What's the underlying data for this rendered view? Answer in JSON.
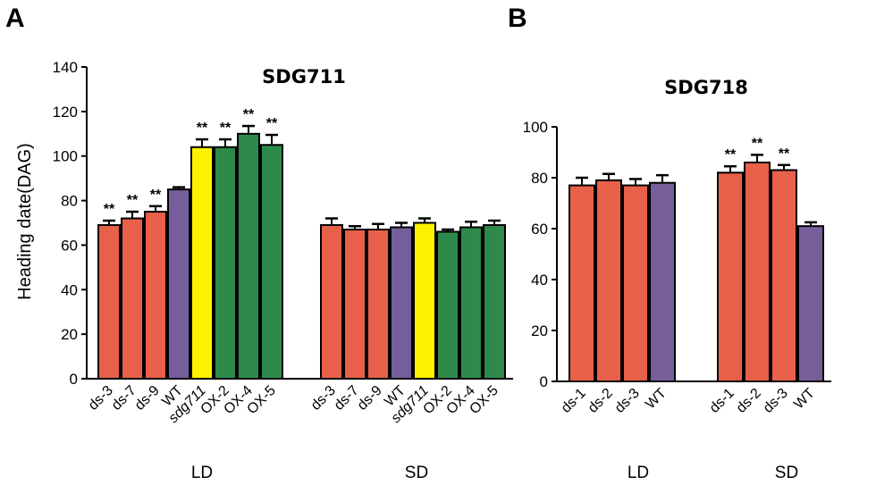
{
  "colors": {
    "ds": "#E8604A",
    "WT": "#765E9B",
    "sdg711": "#FFF200",
    "OX": "#2E8A4B",
    "outline": "#000000"
  },
  "chart_data": [
    {
      "panel": "A",
      "type": "bar",
      "title": "SDG711",
      "xlabel": "",
      "ylabel": "Heading date(DAG)",
      "ylim": [
        0,
        140
      ],
      "yticks": [
        0,
        20,
        40,
        60,
        80,
        100,
        120,
        140
      ],
      "groups": [
        {
          "name": "LD",
          "bars": [
            {
              "label": "ds-3",
              "value": 69,
              "error": 2,
              "color_key": "ds",
              "sig": "**"
            },
            {
              "label": "ds-7",
              "value": 72,
              "error": 3,
              "color_key": "ds",
              "sig": "**"
            },
            {
              "label": "ds-9",
              "value": 75,
              "error": 2.5,
              "color_key": "ds",
              "sig": "**"
            },
            {
              "label": "WT",
              "value": 85,
              "error": 1,
              "color_key": "WT",
              "sig": ""
            },
            {
              "label": "sdg711",
              "value": 104,
              "error": 3.5,
              "color_key": "sdg711",
              "sig": "**",
              "italic": true
            },
            {
              "label": "OX-2",
              "value": 104,
              "error": 3.5,
              "color_key": "OX",
              "sig": "**"
            },
            {
              "label": "OX-4",
              "value": 110,
              "error": 3.5,
              "color_key": "OX",
              "sig": "**"
            },
            {
              "label": "OX-5",
              "value": 105,
              "error": 4.5,
              "color_key": "OX",
              "sig": "**"
            }
          ]
        },
        {
          "name": "SD",
          "bars": [
            {
              "label": "ds-3",
              "value": 69,
              "error": 3,
              "color_key": "ds",
              "sig": ""
            },
            {
              "label": "ds-7",
              "value": 67,
              "error": 1.5,
              "color_key": "ds",
              "sig": ""
            },
            {
              "label": "ds-9",
              "value": 67,
              "error": 2.5,
              "color_key": "ds",
              "sig": ""
            },
            {
              "label": "WT",
              "value": 68,
              "error": 2,
              "color_key": "WT",
              "sig": ""
            },
            {
              "label": "sdg711",
              "value": 70,
              "error": 2,
              "color_key": "sdg711",
              "sig": "",
              "italic": true
            },
            {
              "label": "OX-2",
              "value": 66,
              "error": 1,
              "color_key": "OX",
              "sig": ""
            },
            {
              "label": "OX-4",
              "value": 68,
              "error": 2.5,
              "color_key": "OX",
              "sig": ""
            },
            {
              "label": "OX-5",
              "value": 69,
              "error": 2,
              "color_key": "OX",
              "sig": ""
            }
          ]
        }
      ]
    },
    {
      "panel": "B",
      "type": "bar",
      "title": "SDG718",
      "xlabel": "",
      "ylabel": "",
      "ylim": [
        0,
        100
      ],
      "yticks": [
        0,
        20,
        40,
        60,
        80,
        100
      ],
      "groups": [
        {
          "name": "LD",
          "bars": [
            {
              "label": "ds-1",
              "value": 77,
              "error": 3,
              "color_key": "ds",
              "sig": ""
            },
            {
              "label": "ds-2",
              "value": 79,
              "error": 2.5,
              "color_key": "ds",
              "sig": ""
            },
            {
              "label": "ds-3",
              "value": 77,
              "error": 2.5,
              "color_key": "ds",
              "sig": ""
            },
            {
              "label": "WT",
              "value": 78,
              "error": 3,
              "color_key": "WT",
              "sig": ""
            }
          ]
        },
        {
          "name": "SD",
          "bars": [
            {
              "label": "ds-1",
              "value": 82,
              "error": 2.5,
              "color_key": "ds",
              "sig": "**"
            },
            {
              "label": "ds-2",
              "value": 86,
              "error": 3,
              "color_key": "ds",
              "sig": "**"
            },
            {
              "label": "ds-3",
              "value": 83,
              "error": 2,
              "color_key": "ds",
              "sig": "**"
            },
            {
              "label": "WT",
              "value": 61,
              "error": 1.5,
              "color_key": "WT",
              "sig": ""
            }
          ]
        }
      ]
    }
  ]
}
